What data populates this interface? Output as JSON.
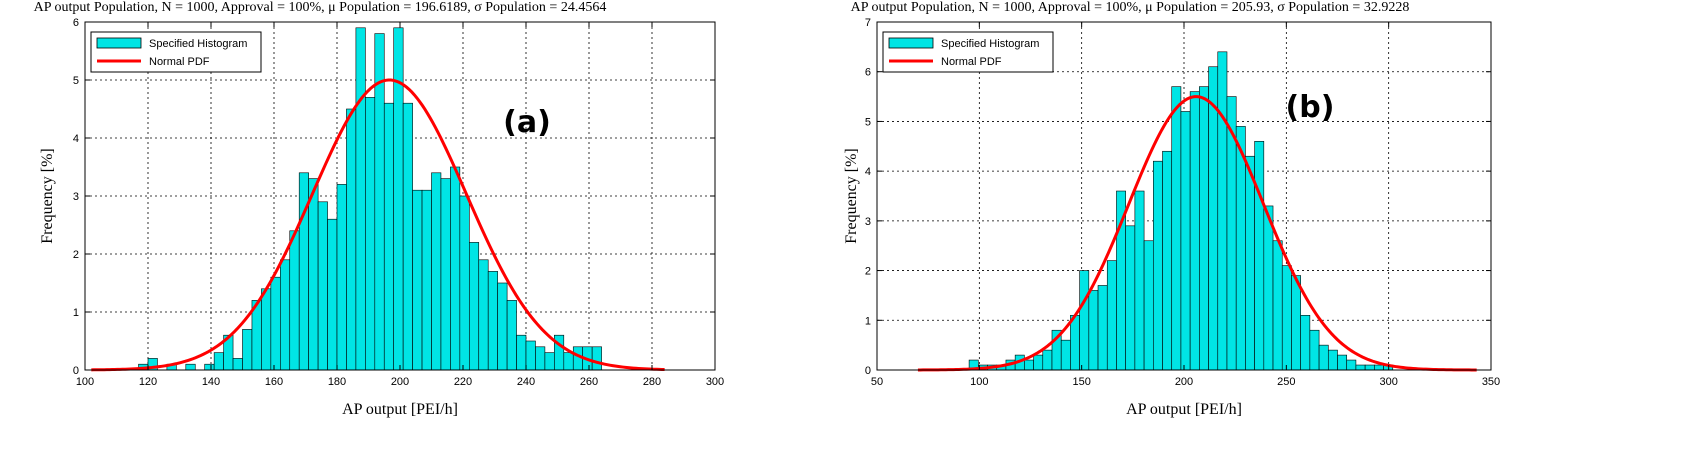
{
  "colors": {
    "histogram": "#00E5E5",
    "pdf": "#FF0000"
  },
  "legend": {
    "histogram_label": "Specified Histogram",
    "pdf_label": "Normal PDF"
  },
  "chart_data": [
    {
      "type": "bar",
      "title": "AP output Population, N = 1000, Approval = 100%, μ Population = 196.6189, σ Population = 24.4564",
      "xlabel": "AP output [PEI/h]",
      "ylabel": "Frequency [%]",
      "tag": "(a)",
      "xlim": [
        100,
        300
      ],
      "ylim": [
        0,
        6
      ],
      "xticks": [
        100,
        120,
        140,
        160,
        180,
        200,
        220,
        240,
        260,
        280,
        300
      ],
      "yticks": [
        0,
        1,
        2,
        3,
        4,
        5,
        6
      ],
      "bin_start": 117,
      "bin_width": 3,
      "values": [
        0.1,
        0.2,
        0,
        0.1,
        0,
        0.1,
        0,
        0.1,
        0.3,
        0.6,
        0.2,
        0.7,
        1.2,
        1.4,
        1.6,
        1.9,
        2.4,
        3.4,
        3.3,
        2.9,
        2.6,
        3.2,
        4.5,
        5.9,
        4.7,
        5.8,
        4.6,
        5.9,
        4.6,
        3.1,
        3.1,
        3.4,
        3.3,
        3.5,
        3.0,
        2.2,
        1.9,
        1.7,
        1.5,
        1.2,
        0.6,
        0.5,
        0.4,
        0.3,
        0.6,
        0.3,
        0.4,
        0.4,
        0.4
      ],
      "pdf_mu": 196.6189,
      "pdf_sigma": 24.4564,
      "pdf_peak": 5.0,
      "pdf_range": [
        102,
        284
      ],
      "legend_position": "top-left"
    },
    {
      "type": "bar",
      "title": "AP output Population, N = 1000, Approval = 100%, μ Population = 205.93, σ Population = 32.9228",
      "xlabel": "AP output [PEI/h]",
      "ylabel": "Frequency [%]",
      "tag": "(b)",
      "xlim": [
        50,
        350
      ],
      "ylim": [
        0,
        7
      ],
      "xticks": [
        50,
        100,
        150,
        200,
        250,
        300,
        350
      ],
      "yticks": [
        0,
        1,
        2,
        3,
        4,
        5,
        6,
        7
      ],
      "bin_start": 95,
      "bin_width": 4.5,
      "values": [
        0.2,
        0.1,
        0.1,
        0.1,
        0.2,
        0.3,
        0.2,
        0.3,
        0.4,
        0.8,
        0.6,
        1.1,
        2.0,
        1.6,
        1.7,
        2.2,
        3.6,
        2.9,
        3.6,
        2.6,
        4.2,
        4.4,
        5.7,
        5.2,
        5.6,
        5.7,
        6.1,
        6.4,
        5.5,
        4.9,
        4.3,
        4.6,
        3.3,
        2.6,
        2.1,
        1.9,
        1.1,
        0.8,
        0.5,
        0.4,
        0.3,
        0.2,
        0.1,
        0.1,
        0.1,
        0.1
      ],
      "pdf_mu": 205.93,
      "pdf_sigma": 32.9228,
      "pdf_peak": 5.5,
      "pdf_range": [
        70,
        343
      ],
      "legend_position": "top-left"
    }
  ]
}
